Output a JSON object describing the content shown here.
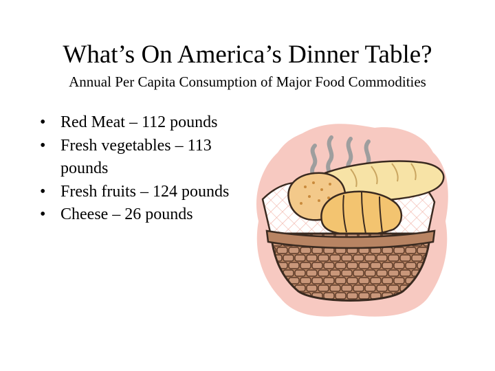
{
  "slide": {
    "title": "What’s On America’s Dinner Table?",
    "subtitle": "Annual Per Capita Consumption of Major Food Commodities",
    "bullet_glyph": "•",
    "bullets": [
      {
        "label": "Red Meat – 112 pounds"
      },
      {
        "label": "Fresh vegetables – 113 pounds"
      },
      {
        "label": "Fresh fruits – 124 pounds"
      },
      {
        "label": "Cheese – 26 pounds"
      }
    ]
  },
  "illustration": {
    "icon": "bread-basket-icon",
    "colors": {
      "background_blob": "#f7c9c1",
      "steam": "#9e9e9e",
      "basket": "#b88463",
      "napkin": "#ffffff",
      "bread": "#f7e3a6",
      "croissant": "#f3c470"
    }
  }
}
